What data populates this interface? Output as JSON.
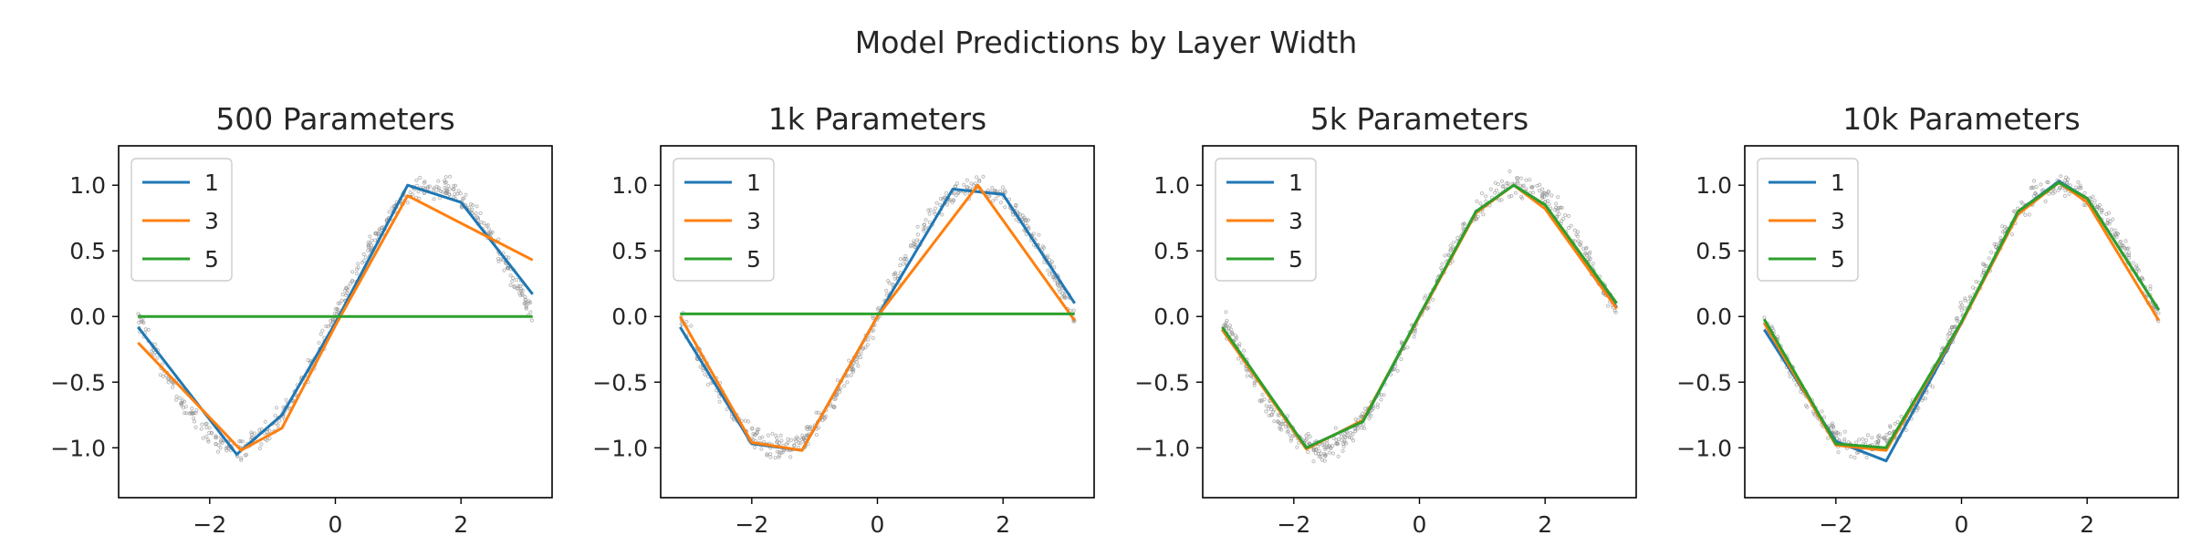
{
  "figure": {
    "title": "Model Predictions by Layer Width"
  },
  "chart_data": [
    {
      "type": "line",
      "title": "500 Parameters",
      "xlim": [
        -3.45,
        3.45
      ],
      "ylim": [
        -1.38,
        1.3
      ],
      "xticks": [
        -2,
        0,
        2
      ],
      "yticks": [
        -1.0,
        -0.5,
        0.0,
        0.5,
        1.0
      ],
      "grid": false,
      "legend_position": "top-left",
      "scatter_color": "#888888",
      "series": [
        {
          "name": "1",
          "color": "#1f77b4",
          "x": [
            -3.14,
            -1.57,
            -0.85,
            0.0,
            1.15,
            2.0,
            3.14
          ],
          "y": [
            -0.08,
            -1.05,
            -0.75,
            -0.05,
            1.0,
            0.87,
            0.17
          ]
        },
        {
          "name": "3",
          "color": "#ff7f0e",
          "x": [
            -3.14,
            -1.5,
            -0.85,
            0.0,
            1.15,
            3.14
          ],
          "y": [
            -0.2,
            -1.02,
            -0.85,
            -0.07,
            0.92,
            0.43
          ]
        },
        {
          "name": "5",
          "color": "#2ca02c",
          "x": [
            -3.14,
            3.14
          ],
          "y": [
            0.0,
            0.0
          ]
        }
      ]
    },
    {
      "type": "line",
      "title": "1k Parameters",
      "xlim": [
        -3.45,
        3.45
      ],
      "ylim": [
        -1.38,
        1.3
      ],
      "xticks": [
        -2,
        0,
        2
      ],
      "yticks": [
        -1.0,
        -0.5,
        0.0,
        0.5,
        1.0
      ],
      "grid": false,
      "legend_position": "top-left",
      "scatter_color": "#888888",
      "series": [
        {
          "name": "1",
          "color": "#1f77b4",
          "x": [
            -3.14,
            -2.0,
            -1.2,
            0.0,
            1.2,
            2.0,
            3.14
          ],
          "y": [
            -0.08,
            -0.97,
            -1.02,
            0.0,
            0.97,
            0.93,
            0.1
          ]
        },
        {
          "name": "3",
          "color": "#ff7f0e",
          "x": [
            -3.14,
            -2.0,
            -1.2,
            0.0,
            1.6,
            3.14
          ],
          "y": [
            0.0,
            -0.96,
            -1.02,
            0.0,
            1.0,
            -0.03
          ]
        },
        {
          "name": "5",
          "color": "#2ca02c",
          "x": [
            -3.14,
            3.14
          ],
          "y": [
            0.02,
            0.02
          ]
        }
      ]
    },
    {
      "type": "line",
      "title": "5k Parameters",
      "xlim": [
        -3.45,
        3.45
      ],
      "ylim": [
        -1.38,
        1.3
      ],
      "xticks": [
        -2,
        0,
        2
      ],
      "yticks": [
        -1.0,
        -0.5,
        0.0,
        0.5,
        1.0
      ],
      "grid": false,
      "legend_position": "top-left",
      "scatter_color": "#888888",
      "series": [
        {
          "name": "1",
          "color": "#1f77b4",
          "x": [
            -3.14,
            -1.8,
            -0.9,
            0.0,
            0.9,
            1.5,
            2.0,
            3.14
          ],
          "y": [
            -0.1,
            -1.0,
            -0.8,
            0.0,
            0.8,
            1.0,
            0.85,
            0.07
          ]
        },
        {
          "name": "3",
          "color": "#ff7f0e",
          "x": [
            -3.14,
            -1.8,
            -0.9,
            0.0,
            0.9,
            1.5,
            2.0,
            3.14
          ],
          "y": [
            -0.1,
            -1.01,
            -0.79,
            0.0,
            0.79,
            1.0,
            0.82,
            0.06
          ]
        },
        {
          "name": "5",
          "color": "#2ca02c",
          "x": [
            -3.14,
            -1.8,
            -0.9,
            0.0,
            0.9,
            1.5,
            2.0,
            3.14
          ],
          "y": [
            -0.08,
            -1.0,
            -0.8,
            0.01,
            0.8,
            1.0,
            0.85,
            0.1
          ]
        }
      ]
    },
    {
      "type": "line",
      "title": "10k Parameters",
      "xlim": [
        -3.45,
        3.45
      ],
      "ylim": [
        -1.38,
        1.3
      ],
      "xticks": [
        -2,
        0,
        2
      ],
      "yticks": [
        -1.0,
        -0.5,
        0.0,
        0.5,
        1.0
      ],
      "grid": false,
      "legend_position": "top-left",
      "scatter_color": "#888888",
      "series": [
        {
          "name": "1",
          "color": "#1f77b4",
          "x": [
            -3.14,
            -2.0,
            -1.2,
            0.0,
            0.9,
            1.55,
            2.0,
            3.14
          ],
          "y": [
            -0.1,
            -0.95,
            -1.1,
            -0.05,
            0.8,
            1.03,
            0.9,
            0.05
          ]
        },
        {
          "name": "3",
          "color": "#ff7f0e",
          "x": [
            -3.14,
            -2.0,
            -1.2,
            0.0,
            0.9,
            1.55,
            2.0,
            3.14
          ],
          "y": [
            -0.05,
            -0.98,
            -1.02,
            -0.05,
            0.78,
            1.02,
            0.87,
            -0.03
          ]
        },
        {
          "name": "5",
          "color": "#2ca02c",
          "x": [
            -3.14,
            -2.0,
            -1.2,
            0.0,
            0.9,
            1.55,
            2.0,
            3.14
          ],
          "y": [
            -0.02,
            -0.97,
            -1.0,
            -0.04,
            0.8,
            1.02,
            0.9,
            0.05
          ]
        }
      ]
    }
  ]
}
